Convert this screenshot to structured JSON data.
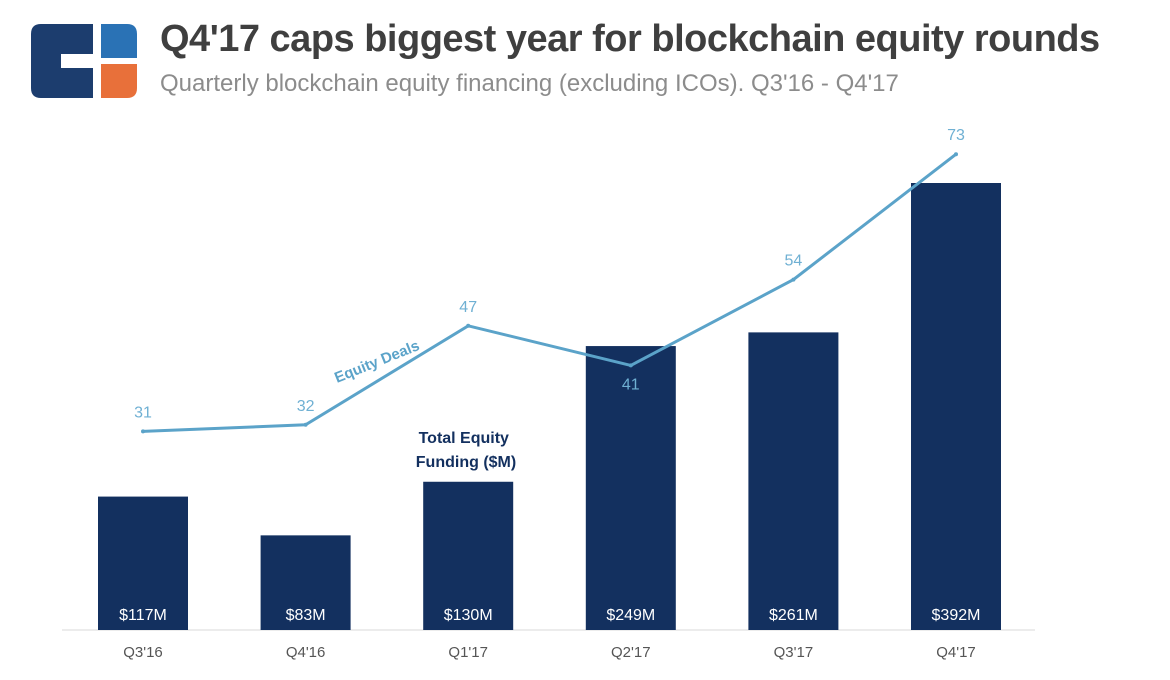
{
  "title": "Q4'17 caps biggest year for blockchain equity rounds",
  "subtitle": "Quarterly blockchain equity financing (excluding ICOs). Q3'16 - Q4'17",
  "colors": {
    "bar": "#13305f",
    "line": "#5ba3c9",
    "line_label": "#6fb0d3",
    "logo_navy": "#1c3d6e",
    "logo_blue": "#2a72b5",
    "logo_orange": "#e8703a"
  },
  "logo_icon": "company-logo-icon",
  "chart_data": {
    "type": "bar",
    "categories": [
      "Q3'16",
      "Q4'16",
      "Q1'17",
      "Q2'17",
      "Q3'17",
      "Q4'17"
    ],
    "series": [
      {
        "name": "Total Equity Funding ($M)",
        "name_lines": [
          "Total Equity",
          "Funding ($M)"
        ],
        "type": "bar",
        "values": [
          117,
          83,
          130,
          249,
          261,
          392
        ],
        "labels": [
          "$117M",
          "$83M",
          "$130M",
          "$249M",
          "$261M",
          "$392M"
        ]
      },
      {
        "name": "Equity Deals",
        "type": "line",
        "values": [
          31,
          32,
          47,
          41,
          54,
          73
        ],
        "labels": [
          "31",
          "32",
          "47",
          "41",
          "54",
          "73"
        ]
      }
    ],
    "grid": false,
    "axes_visible": false
  }
}
